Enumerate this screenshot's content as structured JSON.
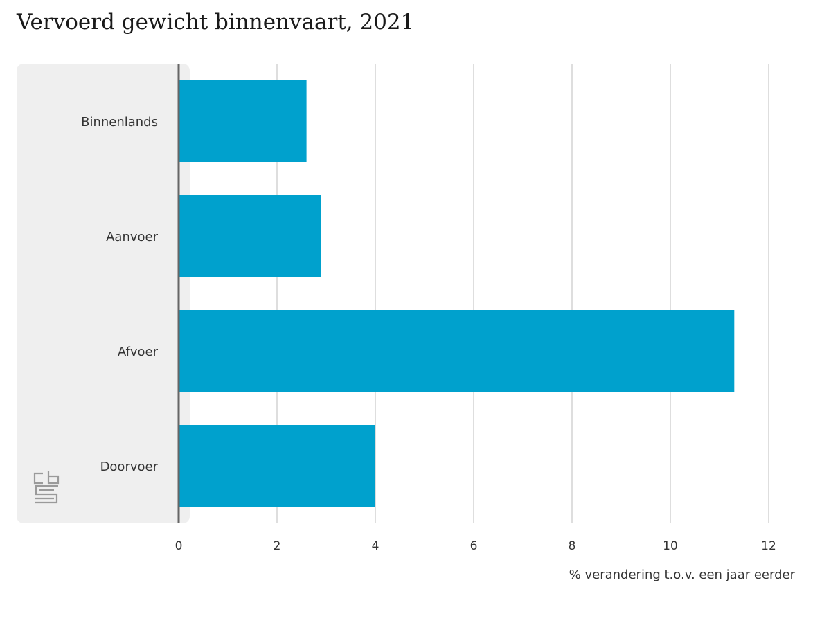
{
  "chart_data": {
    "type": "bar",
    "orientation": "horizontal",
    "title": "Vervoerd gewicht binnenvaart, 2021",
    "categories": [
      "Binnenlands",
      "Aanvoer",
      "Afvoer",
      "Doorvoer"
    ],
    "values": [
      2.6,
      2.9,
      11.3,
      4.0
    ],
    "xlabel": "% verandering t.o.v. een jaar eerder",
    "ylabel": "",
    "xlim": [
      0,
      12
    ],
    "xticks": [
      0,
      2,
      4,
      6,
      8,
      10,
      12
    ],
    "grid": true,
    "bar_color": "#00a1cd"
  },
  "colors": {
    "bar": "#00a1cd",
    "label_panel": "#efefef",
    "grid": "#c8c8c8",
    "axis": "#666666"
  },
  "logo": {
    "icon": "cbs-logo-icon",
    "text": "cbs"
  }
}
